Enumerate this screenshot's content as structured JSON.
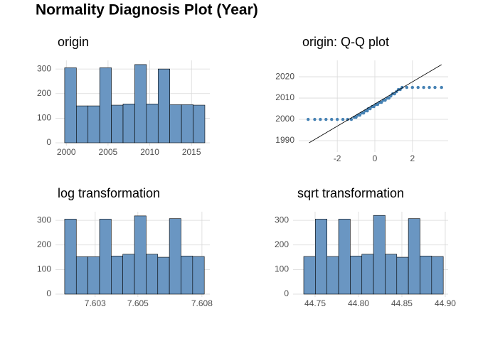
{
  "title": "Normality Diagnosis Plot (Year)",
  "chart_data": [
    {
      "type": "histogram",
      "title": "origin",
      "bins": [
        1999.8,
        2001.2,
        2002.6,
        2004.0,
        2005.4,
        2006.8,
        2008.2,
        2009.6,
        2011.0,
        2012.4,
        2013.8,
        2015.2,
        2016.6
      ],
      "values": [
        305,
        150,
        150,
        305,
        153,
        158,
        318,
        158,
        300,
        155,
        155,
        153
      ],
      "color": "#6a96c2",
      "xlim": [
        1998.7,
        2017.2
      ],
      "ylim": [
        0,
        335
      ],
      "xticks": [
        2000,
        2005,
        2010,
        2015
      ],
      "yticks": [
        0,
        100,
        200,
        300
      ],
      "grid": true
    },
    {
      "type": "scatter",
      "title": "origin: Q-Q plot",
      "x": [
        -3.55,
        -3.2,
        -2.9,
        -2.6,
        -2.3,
        -2.0,
        -1.7,
        -1.45,
        -1.25,
        -1.1,
        -1.0,
        -0.9,
        -0.8,
        -0.7,
        -0.6,
        -0.5,
        -0.4,
        -0.35,
        -0.25,
        -0.15,
        -0.05,
        0.05,
        0.15,
        0.25,
        0.35,
        0.45,
        0.55,
        0.65,
        0.75,
        0.85,
        0.95,
        1.05,
        1.15,
        1.25,
        1.35,
        1.45,
        1.7,
        2.0,
        2.3,
        2.6,
        2.9,
        3.2,
        3.55
      ],
      "values": [
        2000,
        2000,
        2000,
        2000,
        2000,
        2000,
        2000,
        2000,
        2000,
        2001,
        2001,
        2002,
        2002,
        2003,
        2003,
        2004,
        2004,
        2005,
        2005,
        2006,
        2006,
        2007,
        2007,
        2008,
        2008,
        2009,
        2009,
        2010,
        2010,
        2011,
        2012,
        2012,
        2013,
        2014,
        2014,
        2015,
        2015,
        2015,
        2015,
        2015,
        2015,
        2015,
        2015
      ],
      "color": "#4682b4",
      "line": {
        "x": [
          -3.5,
          3.55
        ],
        "y": [
          1989,
          2025.7
        ],
        "color": "#000000"
      },
      "xlim": [
        -4.05,
        3.9
      ],
      "ylim": [
        1986,
        2027.7
      ],
      "xticks": [
        -2,
        0,
        2
      ],
      "yticks": [
        1990,
        2000,
        2010,
        2020
      ],
      "grid": true
    },
    {
      "type": "histogram",
      "title": "log transformation",
      "bins": [
        7.60157,
        7.602115,
        7.60266,
        7.603205,
        7.60375,
        7.604295,
        7.60484,
        7.605385,
        7.60593,
        7.606475,
        7.60702,
        7.607565,
        7.60811
      ],
      "values": [
        305,
        152,
        152,
        305,
        155,
        162,
        318,
        162,
        150,
        307,
        155,
        153
      ],
      "color": "#6a96c2",
      "xlim": [
        7.60114,
        7.60837
      ],
      "ylim": [
        0,
        335
      ],
      "xticks": [
        7.603,
        7.605,
        7.608
      ],
      "yticks": [
        0,
        100,
        200,
        300
      ],
      "grid": true
    },
    {
      "type": "histogram",
      "title": "sqrt transformation",
      "bins": [
        44.7369,
        44.7503,
        44.7637,
        44.7771,
        44.7905,
        44.8039,
        44.8173,
        44.8307,
        44.8441,
        44.8575,
        44.8709,
        44.8843,
        44.8977
      ],
      "values": [
        153,
        305,
        153,
        305,
        155,
        162,
        320,
        162,
        150,
        307,
        155,
        153
      ],
      "color": "#6a96c2",
      "xlim": [
        44.7246,
        44.9033
      ],
      "ylim": [
        0,
        335
      ],
      "xticks": [
        44.75,
        {
          "value": 44.8,
          "label": "44.80"
        },
        44.85,
        {
          "value": 44.9,
          "label": "44.90"
        }
      ],
      "yticks": [
        0,
        100,
        200,
        300
      ],
      "grid": true
    }
  ]
}
